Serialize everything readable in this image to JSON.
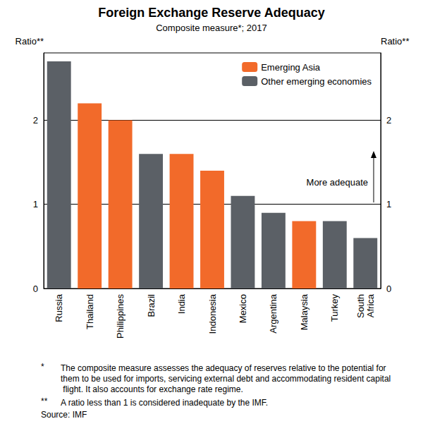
{
  "chart_data": {
    "type": "bar",
    "title": "Foreign Exchange Reserve Adequacy",
    "subtitle": "Composite measure*; 2017",
    "y_label": "Ratio**",
    "y2_label": "Ratio**",
    "categories": [
      "Russia",
      "Thailand",
      "Philippines",
      "Brazil",
      "India",
      "Indonesia",
      "Mexico",
      "Argentina",
      "Malaysia",
      "Turkey",
      "South Africa"
    ],
    "series": [
      {
        "name": "Emerging Asia",
        "color": "#f26a2a",
        "values": [
          null,
          2.2,
          2.0,
          null,
          1.6,
          1.4,
          null,
          null,
          0.8,
          null,
          null
        ]
      },
      {
        "name": "Other emerging economies",
        "color": "#5b6066",
        "values": [
          2.7,
          null,
          null,
          1.6,
          null,
          null,
          1.1,
          0.9,
          null,
          0.8,
          0.6
        ]
      }
    ],
    "ylim": [
      0,
      2.8
    ],
    "yticks": [
      0,
      1,
      2
    ],
    "grid": true,
    "legend": "top-right",
    "annotations": [
      {
        "text": "More adequate"
      }
    ],
    "notes": [
      {
        "marker": "*",
        "text": "The composite measure assesses the adequacy of reserves relative to the potential for them to be used for imports, servicing external debt and accommodating resident capital flight. It also accounts for exchange rate regime."
      },
      {
        "marker": "**",
        "text": "A ratio less than 1 is considered inadequate by the IMF."
      }
    ],
    "source": "Source: IMF"
  }
}
